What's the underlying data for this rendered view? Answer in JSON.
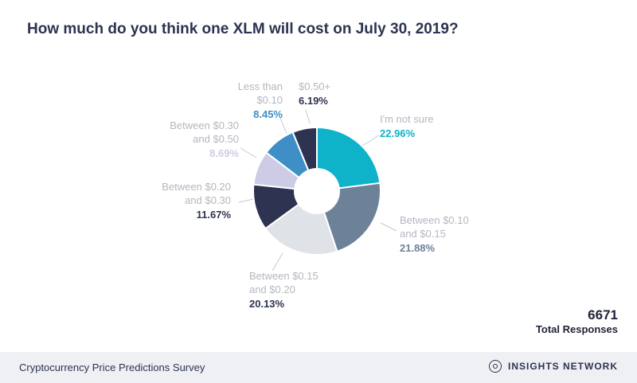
{
  "title": "How much do you think one XLM will cost on July 30, 2019?",
  "chart_data": {
    "type": "pie",
    "donut": true,
    "title": "How much do you think one XLM will cost on July 30, 2019?",
    "slices": [
      {
        "label": "I'm not sure",
        "value": 22.96,
        "pct_text": "22.96%",
        "color": "#0eb2c9"
      },
      {
        "label": "Between $0.10 and $0.15",
        "value": 21.88,
        "pct_text": "21.88%",
        "color": "#6d8298"
      },
      {
        "label": "Between $0.15 and $0.20",
        "value": 20.13,
        "pct_text": "20.13%",
        "color": "#dfe3e8"
      },
      {
        "label": "Between $0.20 and $0.30",
        "value": 11.67,
        "pct_text": "11.67%",
        "color": "#2d3350"
      },
      {
        "label": "Between $0.30 and $0.50",
        "value": 8.69,
        "pct_text": "8.69%",
        "color": "#cccce6"
      },
      {
        "label": "Less than $0.10",
        "value": 8.45,
        "pct_text": "8.45%",
        "color": "#3d8fc6"
      },
      {
        "label": "$0.50+",
        "value": 6.19,
        "pct_text": "6.19%",
        "color": "#2d3350"
      }
    ],
    "label_lines": [
      [
        "I'm not sure"
      ],
      [
        "Between $0.10",
        "and $0.15"
      ],
      [
        "Between $0.15",
        "and $0.20"
      ],
      [
        "Between $0.20",
        "and $0.30"
      ],
      [
        "Between $0.30",
        "and $0.50"
      ],
      [
        "Less than",
        "$0.10"
      ],
      [
        "$0.50+"
      ]
    ],
    "pct_colors": [
      "#0eb2c9",
      "#6d8298",
      "#2d3350",
      "#2d3350",
      "#cccce6",
      "#3d8fc6",
      "#2d3350"
    ],
    "legend": "none"
  },
  "total": {
    "value": "6671",
    "label": "Total Responses"
  },
  "footer": {
    "survey": "Cryptocurrency Price Predictions Survey",
    "brand": "INSIGHTS NETWORK",
    "brand_icon": "insights-network-logo-icon"
  }
}
